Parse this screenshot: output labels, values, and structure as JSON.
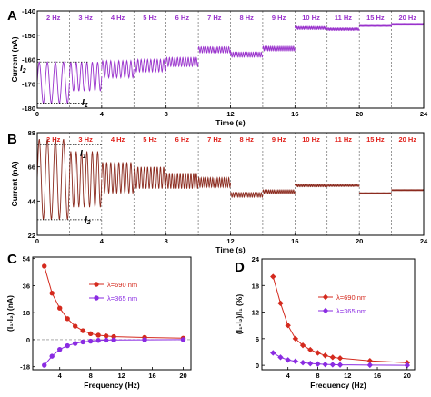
{
  "panel_labels": [
    "A",
    "B",
    "C",
    "D"
  ],
  "chart_data": [
    {
      "id": "A",
      "type": "line",
      "xlabel": "Time (s)",
      "ylabel": "Current (nA)",
      "xlim": [
        0,
        24
      ],
      "ylim": [
        -180,
        -140
      ],
      "xticks": [
        0,
        4,
        8,
        12,
        16,
        20,
        24
      ],
      "yticks": [
        -180,
        -170,
        -160,
        -150,
        -140
      ],
      "color": "#9932CC",
      "segment_label_color": "#9932CC",
      "segments": [
        {
          "label": "2 Hz",
          "t0": 0,
          "t1": 2,
          "freq": 2,
          "mean": -169.5,
          "amp": 8.5
        },
        {
          "label": "3 Hz",
          "t0": 2,
          "t1": 4,
          "freq": 3,
          "mean": -167,
          "amp": 6
        },
        {
          "label": "4 Hz",
          "t0": 4,
          "t1": 6,
          "freq": 4,
          "mean": -164,
          "amp": 3.5
        },
        {
          "label": "5 Hz",
          "t0": 6,
          "t1": 8,
          "freq": 5,
          "mean": -162.5,
          "amp": 2.5
        },
        {
          "label": "6 Hz",
          "t0": 8,
          "t1": 10,
          "freq": 6,
          "mean": -161,
          "amp": 1.8
        },
        {
          "label": "7 Hz",
          "t0": 10,
          "t1": 12,
          "freq": 7,
          "mean": -156,
          "amp": 1.2
        },
        {
          "label": "8 Hz",
          "t0": 12,
          "t1": 14,
          "freq": 8,
          "mean": -158,
          "amp": 1
        },
        {
          "label": "9 Hz",
          "t0": 14,
          "t1": 16,
          "freq": 9,
          "mean": -155.5,
          "amp": 0.9
        },
        {
          "label": "10 Hz",
          "t0": 16,
          "t1": 18,
          "freq": 10,
          "mean": -147,
          "amp": 0.6
        },
        {
          "label": "11 Hz",
          "t0": 18,
          "t1": 20,
          "freq": 11,
          "mean": -147.5,
          "amp": 0.5
        },
        {
          "label": "15 Hz",
          "t0": 20,
          "t1": 22,
          "freq": 15,
          "mean": -146,
          "amp": 0.4
        },
        {
          "label": "20 Hz",
          "t0": 22,
          "t1": 24,
          "freq": 20,
          "mean": -145.5,
          "amp": 0.3
        }
      ],
      "annotations": [
        {
          "text": "I",
          "sub": "2",
          "level": -161
        },
        {
          "text": "I",
          "sub": "1",
          "level": -178
        }
      ]
    },
    {
      "id": "B",
      "type": "line",
      "xlabel": "Time (s)",
      "ylabel": "Current (nA)",
      "xlim": [
        0,
        24
      ],
      "ylim": [
        22,
        88
      ],
      "xticks": [
        0,
        4,
        8,
        12,
        16,
        20,
        24
      ],
      "yticks": [
        22,
        44,
        66,
        88
      ],
      "color": "#8B2A1E",
      "segment_label_color": "#E0201A",
      "segments": [
        {
          "label": "2 Hz",
          "t0": 0,
          "t1": 2,
          "freq": 2,
          "mean": 58,
          "amp": 26
        },
        {
          "label": "3 Hz",
          "t0": 2,
          "t1": 4,
          "freq": 3,
          "mean": 58,
          "amp": 18
        },
        {
          "label": "4 Hz",
          "t0": 4,
          "t1": 6,
          "freq": 4,
          "mean": 59,
          "amp": 10
        },
        {
          "label": "5 Hz",
          "t0": 6,
          "t1": 8,
          "freq": 5,
          "mean": 59,
          "amp": 7
        },
        {
          "label": "6 Hz",
          "t0": 8,
          "t1": 10,
          "freq": 6,
          "mean": 57,
          "amp": 5
        },
        {
          "label": "7 Hz",
          "t0": 10,
          "t1": 12,
          "freq": 7,
          "mean": 56,
          "amp": 3
        },
        {
          "label": "8 Hz",
          "t0": 12,
          "t1": 14,
          "freq": 8,
          "mean": 48,
          "amp": 1.5
        },
        {
          "label": "9 Hz",
          "t0": 14,
          "t1": 16,
          "freq": 9,
          "mean": 50,
          "amp": 1.2
        },
        {
          "label": "10 Hz",
          "t0": 16,
          "t1": 18,
          "freq": 10,
          "mean": 54,
          "amp": 0.8
        },
        {
          "label": "11 Hz",
          "t0": 18,
          "t1": 20,
          "freq": 11,
          "mean": 54,
          "amp": 0.6
        },
        {
          "label": "15 Hz",
          "t0": 20,
          "t1": 22,
          "freq": 15,
          "mean": 49,
          "amp": 0.4
        },
        {
          "label": "20 Hz",
          "t0": 22,
          "t1": 24,
          "freq": 20,
          "mean": 51,
          "amp": 0.3
        }
      ],
      "annotations": [
        {
          "text": "I",
          "sub": "1",
          "level": 80
        },
        {
          "text": "I",
          "sub": "2",
          "level": 32
        }
      ]
    },
    {
      "id": "C",
      "type": "line",
      "xlabel": "Frequency (Hz)",
      "ylabel": "(I₁-I₂) (nA)",
      "xlim": [
        0.5,
        21
      ],
      "ylim": [
        -20,
        55
      ],
      "xticks": [
        4,
        8,
        12,
        16,
        20
      ],
      "yticks": [
        -18,
        0,
        18,
        36,
        54
      ],
      "zero_line": true,
      "legend_position": "right",
      "series": [
        {
          "name": "λ=690 nm",
          "color": "#D42A1E",
          "marker": "circle",
          "x": [
            2,
            3,
            4,
            5,
            6,
            7,
            8,
            9,
            10,
            11,
            15,
            20
          ],
          "y": [
            49,
            31,
            21,
            14,
            9,
            6,
            4,
            3,
            2.5,
            2,
            1.5,
            1
          ]
        },
        {
          "name": "λ=365 nm",
          "color": "#8A2BE2",
          "marker": "circle",
          "x": [
            2,
            3,
            4,
            5,
            6,
            7,
            8,
            9,
            10,
            11,
            15,
            20
          ],
          "y": [
            -17,
            -11,
            -6.5,
            -4,
            -2.5,
            -1.5,
            -1,
            -0.5,
            -0.3,
            -0.2,
            -0.1,
            0
          ]
        }
      ]
    },
    {
      "id": "D",
      "type": "line",
      "xlabel": "Frequency (Hz)",
      "ylabel": "(I₁-I₂)/I₁ (%)",
      "xlim": [
        0.5,
        21
      ],
      "ylim": [
        -1,
        24
      ],
      "xticks": [
        4,
        8,
        12,
        16,
        20
      ],
      "yticks": [
        0,
        6,
        12,
        18,
        24
      ],
      "legend_position": "right",
      "series": [
        {
          "name": "λ=690 nm",
          "color": "#D42A1E",
          "marker": "diamond",
          "x": [
            2,
            3,
            4,
            5,
            6,
            7,
            8,
            9,
            10,
            11,
            15,
            20
          ],
          "y": [
            20,
            14,
            9,
            6,
            4.5,
            3.5,
            2.8,
            2.2,
            1.8,
            1.6,
            1,
            0.6
          ]
        },
        {
          "name": "λ=365 nm",
          "color": "#8A2BE2",
          "marker": "diamond",
          "x": [
            2,
            3,
            4,
            5,
            6,
            7,
            8,
            9,
            10,
            11,
            15,
            20
          ],
          "y": [
            2.8,
            1.8,
            1.2,
            0.9,
            0.6,
            0.4,
            0.3,
            0.2,
            0.15,
            0.1,
            0.05,
            0
          ]
        }
      ]
    }
  ]
}
